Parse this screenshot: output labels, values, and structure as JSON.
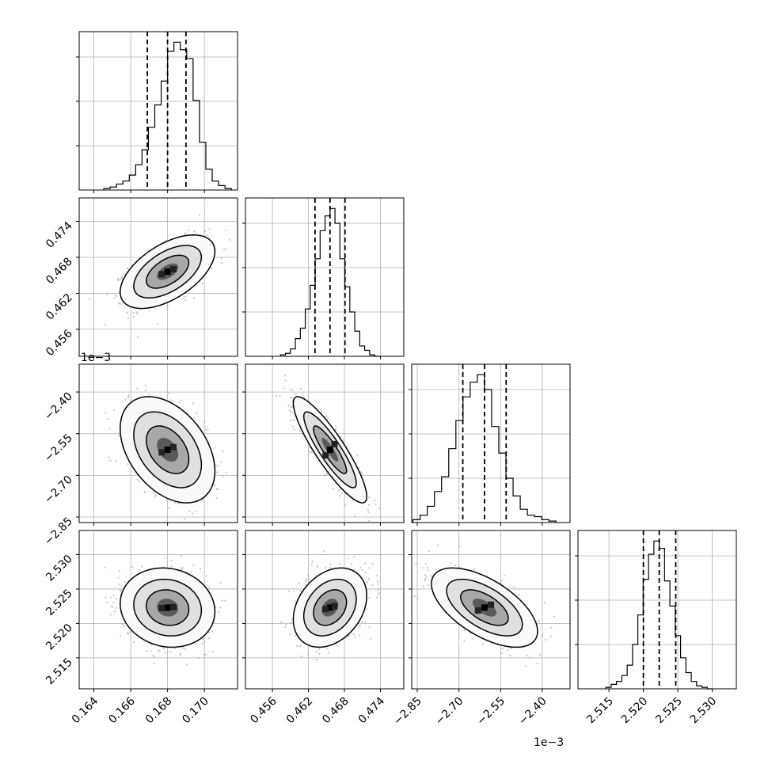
{
  "chart_data": {
    "type": "corner",
    "grid": true,
    "parameters": [
      {
        "ticks": [
          0.164,
          0.166,
          0.168,
          0.17
        ],
        "tick_labels": [
          "0.164",
          "0.166",
          "0.168",
          "0.170"
        ],
        "range": [
          0.1632,
          0.1718
        ]
      },
      {
        "ticks": [
          0.456,
          0.462,
          0.468,
          0.474
        ],
        "tick_labels": [
          "0.456",
          "0.462",
          "0.468",
          "0.474"
        ],
        "range": [
          0.4515,
          0.4779
        ]
      },
      {
        "ticks": [
          -2.85,
          -2.7,
          -2.55,
          -2.4
        ],
        "tick_labels": [
          "−2.85",
          "−2.70",
          "−2.55",
          "−2.40"
        ],
        "range": [
          -2.87,
          -2.3
        ],
        "offset_label": "1e−3"
      },
      {
        "ticks": [
          2.515,
          2.52,
          2.525,
          2.53
        ],
        "tick_labels": [
          "2.515",
          "2.520",
          "2.525",
          "2.530"
        ],
        "range": [
          2.5105,
          2.5335
        ]
      }
    ],
    "quantiles": [
      [
        0.1669,
        0.168,
        0.169
      ],
      [
        0.4631,
        0.4656,
        0.4681
      ],
      [
        -2.686,
        -2.608,
        -2.53
      ],
      [
        2.52,
        2.5223,
        2.5247
      ]
    ],
    "histograms": [
      [
        0.01,
        0.02,
        0.04,
        0.06,
        0.1,
        0.17,
        0.27,
        0.42,
        0.57,
        0.73,
        0.93,
        0.99,
        0.94,
        0.88,
        0.6,
        0.32,
        0.14,
        0.06,
        0.03,
        0.01
      ],
      [
        0.01,
        0.02,
        0.05,
        0.12,
        0.19,
        0.32,
        0.48,
        0.66,
        0.85,
        0.95,
        1.0,
        0.9,
        0.66,
        0.47,
        0.3,
        0.17,
        0.07,
        0.04,
        0.01,
        0.0
      ],
      [
        0.02,
        0.05,
        0.11,
        0.21,
        0.31,
        0.5,
        0.69,
        0.85,
        0.95,
        1.0,
        0.9,
        0.65,
        0.47,
        0.3,
        0.18,
        0.09,
        0.05,
        0.04,
        0.02,
        0.01
      ],
      [
        0.01,
        0.03,
        0.05,
        0.09,
        0.16,
        0.3,
        0.5,
        0.74,
        0.91,
        1.0,
        0.95,
        0.73,
        0.56,
        0.36,
        0.21,
        0.11,
        0.05,
        0.02,
        0.01,
        0.0
      ]
    ],
    "pair_correlations": {
      "1-0": 0.55,
      "2-0": -0.4,
      "2-1": -0.88,
      "3-0": -0.1,
      "3-1": 0.3,
      "3-2": -0.6
    }
  }
}
